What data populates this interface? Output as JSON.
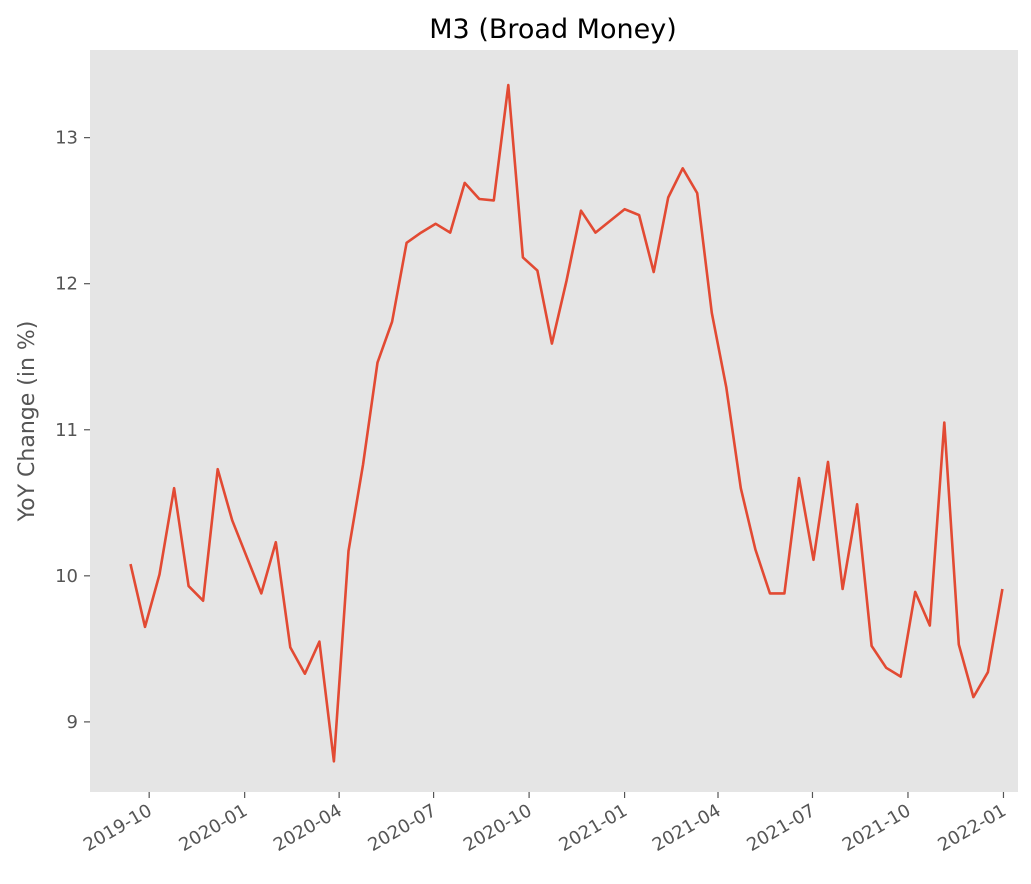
{
  "chart_data": {
    "type": "line",
    "title": "M3 (Broad Money)",
    "xlabel": "",
    "ylabel": "YoY Change (in %)",
    "x_axis_type": "date",
    "xlim": [
      "2019-08-05",
      "2022-01-15"
    ],
    "ylim": [
      8.52,
      13.6
    ],
    "grid": false,
    "background_color": "#e5e5e5",
    "line_color": "#e24a33",
    "x_ticks": [
      {
        "date": "2019-10-01",
        "label": "2019-10"
      },
      {
        "date": "2020-01-01",
        "label": "2020-01"
      },
      {
        "date": "2020-04-01",
        "label": "2020-04"
      },
      {
        "date": "2020-07-01",
        "label": "2020-07"
      },
      {
        "date": "2020-10-01",
        "label": "2020-10"
      },
      {
        "date": "2021-01-01",
        "label": "2021-01"
      },
      {
        "date": "2021-04-01",
        "label": "2021-04"
      },
      {
        "date": "2021-07-01",
        "label": "2021-07"
      },
      {
        "date": "2021-10-01",
        "label": "2021-10"
      },
      {
        "date": "2022-01-01",
        "label": "2022-01"
      }
    ],
    "y_ticks": [
      {
        "value": 9,
        "label": "9"
      },
      {
        "value": 10,
        "label": "10"
      },
      {
        "value": 11,
        "label": "11"
      },
      {
        "value": 12,
        "label": "12"
      },
      {
        "value": 13,
        "label": "13"
      }
    ],
    "series": [
      {
        "x": [
          "2019-09-13",
          "2019-09-27",
          "2019-10-11",
          "2019-10-25",
          "2019-11-08",
          "2019-11-22",
          "2019-12-06",
          "2019-12-20",
          "2020-01-03",
          "2020-01-17",
          "2020-01-31",
          "2020-02-14",
          "2020-02-28",
          "2020-03-13",
          "2020-03-27",
          "2020-04-10",
          "2020-04-24",
          "2020-05-08",
          "2020-05-22",
          "2020-06-05",
          "2020-06-19",
          "2020-07-03",
          "2020-07-17",
          "2020-07-31",
          "2020-08-14",
          "2020-08-28",
          "2020-09-11",
          "2020-09-25",
          "2020-10-09",
          "2020-10-23",
          "2020-11-06",
          "2020-11-20",
          "2020-12-04",
          "2020-12-18",
          "2021-01-01",
          "2021-01-15",
          "2021-01-29",
          "2021-02-12",
          "2021-02-26",
          "2021-03-12",
          "2021-03-26",
          "2021-04-09",
          "2021-04-23",
          "2021-05-07",
          "2021-05-21",
          "2021-06-04",
          "2021-06-18",
          "2021-07-02",
          "2021-07-16",
          "2021-07-30",
          "2021-08-13",
          "2021-08-27",
          "2021-09-10",
          "2021-09-24",
          "2021-10-08",
          "2021-10-22",
          "2021-11-05",
          "2021-11-19",
          "2021-12-03",
          "2021-12-17",
          "2021-12-31"
        ],
        "y": [
          10.08,
          9.65,
          10.01,
          10.6,
          9.93,
          9.83,
          10.73,
          10.38,
          10.13,
          9.88,
          10.23,
          9.51,
          9.33,
          9.55,
          8.73,
          10.17,
          10.76,
          11.46,
          11.74,
          12.28,
          12.35,
          12.41,
          12.35,
          12.69,
          12.58,
          12.57,
          13.36,
          12.18,
          12.09,
          11.59,
          12.02,
          12.5,
          12.35,
          12.43,
          12.51,
          12.47,
          12.08,
          12.59,
          12.79,
          12.62,
          11.8,
          11.29,
          10.6,
          10.18,
          9.88,
          9.88,
          10.67,
          10.11,
          10.78,
          9.91,
          10.49,
          9.52,
          9.37,
          9.31,
          9.89,
          9.66,
          11.05,
          9.53,
          9.17,
          9.34,
          9.91
        ]
      }
    ]
  }
}
